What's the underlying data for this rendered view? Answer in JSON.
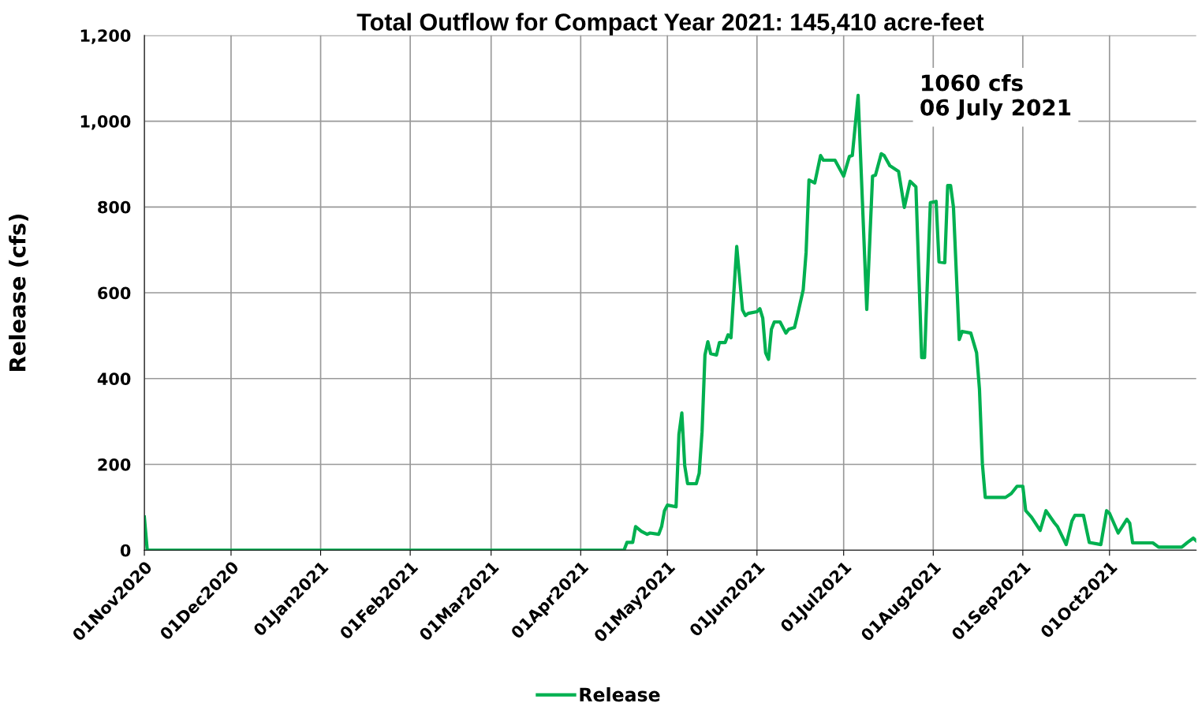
{
  "chart_data": {
    "type": "line",
    "title": "Total Outflow for Compact Year 2021: 145,410 acre-feet",
    "ylabel": "Release (cfs)",
    "annotations": [
      "1060 cfs\n06 July 2021"
    ],
    "x": [
      "2020-11-01",
      "2020-11-02",
      "2021-04-16",
      "2021-04-17",
      "2021-04-19",
      "2021-04-20",
      "2021-04-22",
      "2021-04-24",
      "2021-04-25",
      "2021-04-28",
      "2021-04-29",
      "2021-04-30",
      "2021-05-01",
      "2021-05-04",
      "2021-05-05",
      "2021-05-06",
      "2021-05-07",
      "2021-05-08",
      "2021-05-11",
      "2021-05-12",
      "2021-05-13",
      "2021-05-14",
      "2021-05-15",
      "2021-05-16",
      "2021-05-18",
      "2021-05-19",
      "2021-05-21",
      "2021-05-22",
      "2021-05-23",
      "2021-05-25",
      "2021-05-27",
      "2021-05-28",
      "2021-05-29",
      "2021-06-01",
      "2021-06-02",
      "2021-06-03",
      "2021-06-04",
      "2021-06-05",
      "2021-06-06",
      "2021-06-07",
      "2021-06-09",
      "2021-06-11",
      "2021-06-12",
      "2021-06-14",
      "2021-06-15",
      "2021-06-17",
      "2021-06-18",
      "2021-06-19",
      "2021-06-21",
      "2021-06-23",
      "2021-06-24",
      "2021-06-28",
      "2021-07-01",
      "2021-07-03",
      "2021-07-04",
      "2021-07-06",
      "2021-07-09",
      "2021-07-11",
      "2021-07-12",
      "2021-07-14",
      "2021-07-15",
      "2021-07-17",
      "2021-07-20",
      "2021-07-22",
      "2021-07-24",
      "2021-07-26",
      "2021-07-28",
      "2021-07-29",
      "2021-07-31",
      "2021-08-02",
      "2021-08-03",
      "2021-08-05",
      "2021-08-06",
      "2021-08-07",
      "2021-08-08",
      "2021-08-10",
      "2021-08-11",
      "2021-08-14",
      "2021-08-16",
      "2021-08-17",
      "2021-08-18",
      "2021-08-19",
      "2021-08-26",
      "2021-08-28",
      "2021-08-30",
      "2021-09-01",
      "2021-09-02",
      "2021-09-04",
      "2021-09-07",
      "2021-09-09",
      "2021-09-12",
      "2021-09-13",
      "2021-09-16",
      "2021-09-18",
      "2021-09-19",
      "2021-09-22",
      "2021-09-24",
      "2021-09-28",
      "2021-09-30",
      "2021-10-01",
      "2021-10-04",
      "2021-10-07",
      "2021-10-08",
      "2021-10-09",
      "2021-10-16",
      "2021-10-18",
      "2021-10-26",
      "2021-10-28",
      "2021-10-30",
      "2021-10-31"
    ],
    "series": [
      {
        "name": "Release",
        "color": "#00b050",
        "values": [
          77,
          0,
          0,
          18,
          18,
          55,
          44,
          37,
          40,
          37,
          55,
          92,
          105,
          101,
          270,
          320,
          197,
          155,
          155,
          179,
          276,
          455,
          486,
          458,
          455,
          484,
          484,
          502,
          495,
          708,
          560,
          547,
          552,
          556,
          563,
          541,
          460,
          445,
          515,
          532,
          532,
          506,
          515,
          519,
          547,
          607,
          694,
          863,
          856,
          920,
          909,
          909,
          872,
          918,
          920,
          1060,
          561,
          872,
          874,
          924,
          920,
          896,
          883,
          799,
          860,
          847,
          449,
          449,
          810,
          813,
          672,
          670,
          850,
          850,
          799,
          491,
          510,
          506,
          460,
          375,
          202,
          123,
          123,
          132,
          149,
          149,
          92,
          77,
          46,
          92,
          63,
          55,
          13,
          68,
          81,
          81,
          18,
          13,
          92,
          86,
          40,
          72,
          63,
          17,
          17,
          7,
          7,
          18,
          28,
          22
        ]
      }
    ],
    "xlim": [
      "2020-11-01",
      "2021-10-31"
    ],
    "xticks": [
      {
        "value": "2020-11-01",
        "label": "01Nov2020"
      },
      {
        "value": "2020-12-01",
        "label": "01Dec2020"
      },
      {
        "value": "2021-01-01",
        "label": "01Jan2021"
      },
      {
        "value": "2021-02-01",
        "label": "01Feb2021"
      },
      {
        "value": "2021-03-01",
        "label": "01Mar2021"
      },
      {
        "value": "2021-04-01",
        "label": "01Apr2021"
      },
      {
        "value": "2021-05-01",
        "label": "01May2021"
      },
      {
        "value": "2021-06-01",
        "label": "01Jun2021"
      },
      {
        "value": "2021-07-01",
        "label": "01Jul2021"
      },
      {
        "value": "2021-08-01",
        "label": "01Aug2021"
      },
      {
        "value": "2021-09-01",
        "label": "01Sep2021"
      },
      {
        "value": "2021-10-01",
        "label": "01Oct2021"
      }
    ],
    "ylim": [
      0,
      1200
    ],
    "yticks": [
      {
        "value": 0,
        "label": "0"
      },
      {
        "value": 200,
        "label": "200"
      },
      {
        "value": 400,
        "label": "400"
      },
      {
        "value": 600,
        "label": "600"
      },
      {
        "value": 800,
        "label": "800"
      },
      {
        "value": 1000,
        "label": "1,000"
      },
      {
        "value": 1200,
        "label": "1,200"
      }
    ],
    "grid": true,
    "legend": "bottom",
    "marker": "none",
    "line_style": "solid"
  }
}
